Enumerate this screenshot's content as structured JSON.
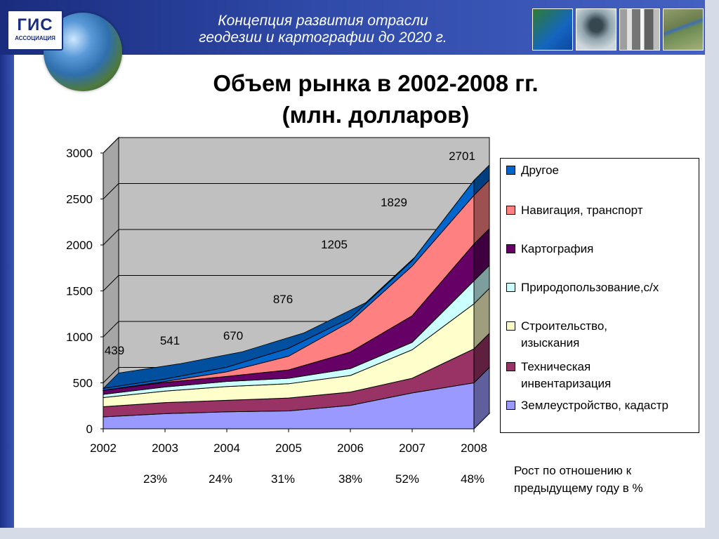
{
  "header": {
    "banner_title_1": "Концепция развития отрасли",
    "banner_title_2": "геодезии и картографии до 2020 г.",
    "logo_main": "ГИС",
    "logo_sub": "АССОЦИАЦИЯ"
  },
  "slide_title_1": "Объем рынка в 2002-2008 гг.",
  "slide_title_2": "(млн. долларов)",
  "growth_note": "Рост по отношению к предыдущему году в %",
  "colors": {
    "banner": "#2f4aa8",
    "plot_wall": "#c0c0c0",
    "floor": "#9a9a9a"
  },
  "chart_data": {
    "type": "area",
    "stacked": true,
    "three_d": true,
    "title": "Объем рынка в 2002-2008 гг. (млн. долларов)",
    "x": [
      "2002",
      "2003",
      "2004",
      "2005",
      "2006",
      "2007",
      "2008"
    ],
    "ylim": [
      0,
      3000
    ],
    "yticks": [
      "0",
      "500",
      "1000",
      "1500",
      "2000",
      "2500",
      "3000"
    ],
    "grid": true,
    "legend_position": "right",
    "series": [
      {
        "name": "Землеустройство, кадастр",
        "color": "#9999ff",
        "values": [
          130,
          165,
          185,
          195,
          255,
          390,
          500
        ]
      },
      {
        "name": "Техническая инвентаризация",
        "color": "#993366",
        "values": [
          110,
          120,
          125,
          140,
          145,
          160,
          370
        ]
      },
      {
        "name": "Строительство, изыскания",
        "color": "#ffffcc",
        "values": [
          100,
          125,
          150,
          155,
          180,
          310,
          490
        ]
      },
      {
        "name": "Природопользование,с/х",
        "color": "#ccffff",
        "values": [
          35,
          45,
          55,
          60,
          75,
          80,
          250
        ]
      },
      {
        "name": "Картография",
        "color": "#660066",
        "values": [
          44,
          50,
          55,
          90,
          180,
          290,
          400
        ]
      },
      {
        "name": "Навигация, транспорт",
        "color": "#ff8080",
        "values": [
          0,
          10,
          50,
          150,
          330,
          540,
          530
        ]
      },
      {
        "name": "Другое",
        "color": "#0066cc",
        "values": [
          20,
          26,
          50,
          86,
          40,
          59,
          161
        ]
      }
    ],
    "totals": [
      "439",
      "541",
      "670",
      "876",
      "1205",
      "1829",
      "2701"
    ],
    "growth": [
      "23%",
      "24%",
      "31%",
      "38%",
      "52%",
      "48%"
    ]
  }
}
